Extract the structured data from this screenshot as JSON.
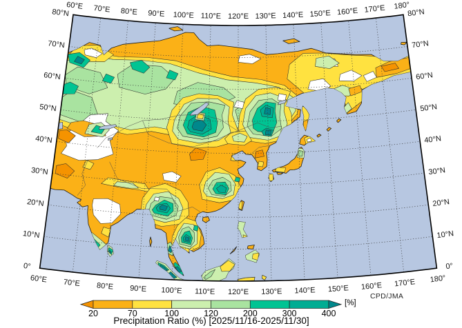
{
  "map": {
    "lon_ticks": [
      {
        "v": 60,
        "t": "60°E"
      },
      {
        "v": 70,
        "t": "70°E"
      },
      {
        "v": 80,
        "t": "80°E"
      },
      {
        "v": 90,
        "t": "90°E"
      },
      {
        "v": 100,
        "t": "100°E"
      },
      {
        "v": 110,
        "t": "110°E"
      },
      {
        "v": 120,
        "t": "120°E"
      },
      {
        "v": 130,
        "t": "130°E"
      },
      {
        "v": 140,
        "t": "140°E"
      },
      {
        "v": 150,
        "t": "150°E"
      },
      {
        "v": 160,
        "t": "160°E"
      },
      {
        "v": 170,
        "t": "170°E"
      },
      {
        "v": 180,
        "t": "180°"
      }
    ],
    "lat_ticks": [
      {
        "v": 0,
        "t": "0°"
      },
      {
        "v": 10,
        "t": "10°N"
      },
      {
        "v": 20,
        "t": "20°N"
      },
      {
        "v": 30,
        "t": "30°N"
      },
      {
        "v": 40,
        "t": "40°N"
      },
      {
        "v": 50,
        "t": "50°N"
      },
      {
        "v": 60,
        "t": "60°N"
      },
      {
        "v": 70,
        "t": "70°N"
      },
      {
        "v": 80,
        "t": "80°N"
      }
    ],
    "colors": {
      "ocean": "#B7C7E1",
      "no_data": "#FFFFFF",
      "coast": "#1a1a1a",
      "grid": "#3a3a3a",
      "frame": "#000000",
      "contour": "#2b2b2b",
      "country_border": "#4a4a4a"
    }
  },
  "legend": {
    "title": "Precipitation Ratio (%) [2025/11/16-2025/11/30]",
    "unit": "[%]",
    "tick_labels": [
      "20",
      "70",
      "100",
      "120",
      "200",
      "300",
      "400"
    ],
    "bands": [
      {
        "range": "<20",
        "color": "#F59300"
      },
      {
        "range": "20-70",
        "color": "#FBB117"
      },
      {
        "range": "70-100",
        "color": "#FFE240"
      },
      {
        "range": "100-120",
        "color": "#CCEFAE"
      },
      {
        "range": "120-200",
        "color": "#A9E3A0"
      },
      {
        "range": "200-300",
        "color": "#00C493"
      },
      {
        "range": "300-400",
        "color": "#00AD93"
      },
      {
        "range": ">400",
        "color": "#00888C"
      }
    ]
  },
  "credit": "CPD/JMA"
}
